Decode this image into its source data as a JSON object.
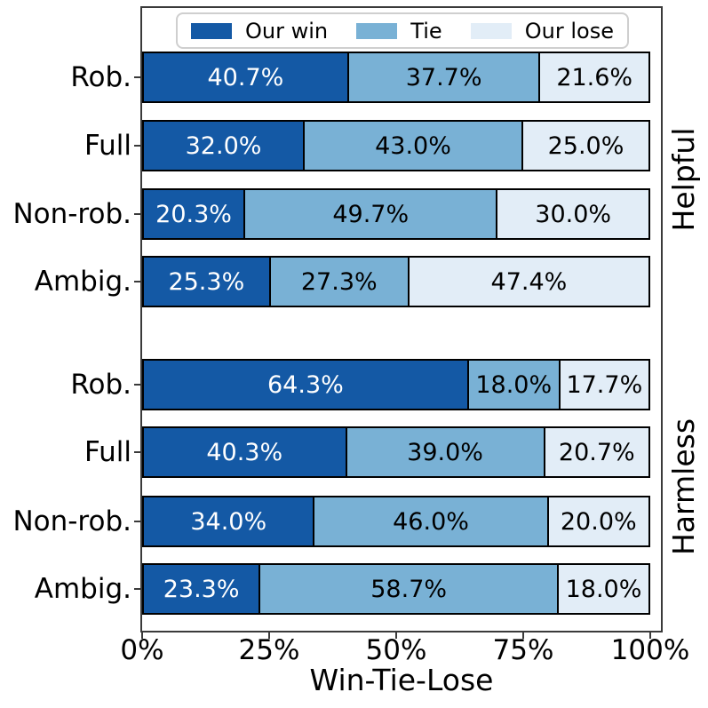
{
  "chart_data": {
    "type": "bar",
    "orientation": "horizontal",
    "stacked": true,
    "xlabel": "Win-Tie-Lose",
    "xlim_pct": [
      0,
      102.3
    ],
    "grid": false,
    "legend_position": "top",
    "xticks": [
      {
        "label": "0%",
        "value": 0
      },
      {
        "label": "25%",
        "value": 25
      },
      {
        "label": "50%",
        "value": 50
      },
      {
        "label": "75%",
        "value": 75
      },
      {
        "label": "100%",
        "value": 100
      }
    ],
    "legend": {
      "entries": [
        {
          "label": "Our win",
          "color": "#1459a5"
        },
        {
          "label": "Tie",
          "color": "#79b1d5"
        },
        {
          "label": "Our lose",
          "color": "#e2edf7"
        }
      ]
    },
    "segment_text_colors": [
      "#ffffff",
      "#000000",
      "#000000"
    ],
    "segment_edge_color": "#000000",
    "groups": [
      {
        "label": "Helpful",
        "rows": [
          {
            "category": "Rob.",
            "values": [
              40.7,
              37.7,
              21.6
            ],
            "labels": [
              "40.7%",
              "37.7%",
              "21.6%"
            ]
          },
          {
            "category": "Full",
            "values": [
              32.0,
              43.0,
              25.0
            ],
            "labels": [
              "32.0%",
              "43.0%",
              "25.0%"
            ]
          },
          {
            "category": "Non-rob.",
            "values": [
              20.3,
              49.7,
              30.0
            ],
            "labels": [
              "20.3%",
              "49.7%",
              "30.0%"
            ]
          },
          {
            "category": "Ambig.",
            "values": [
              25.3,
              27.3,
              47.4
            ],
            "labels": [
              "25.3%",
              "27.3%",
              "47.4%"
            ]
          }
        ]
      },
      {
        "label": "Harmless",
        "rows": [
          {
            "category": "Rob.",
            "values": [
              64.3,
              18.0,
              17.7
            ],
            "labels": [
              "64.3%",
              "18.0%",
              "17.7%"
            ]
          },
          {
            "category": "Full",
            "values": [
              40.3,
              39.0,
              20.7
            ],
            "labels": [
              "40.3%",
              "39.0%",
              "20.7%"
            ]
          },
          {
            "category": "Non-rob.",
            "values": [
              34.0,
              46.0,
              20.0
            ],
            "labels": [
              "34.0%",
              "46.0%",
              "20.0%"
            ]
          },
          {
            "category": "Ambig.",
            "values": [
              23.3,
              58.7,
              18.0
            ],
            "labels": [
              "23.3%",
              "58.7%",
              "18.0%"
            ]
          }
        ]
      }
    ]
  }
}
